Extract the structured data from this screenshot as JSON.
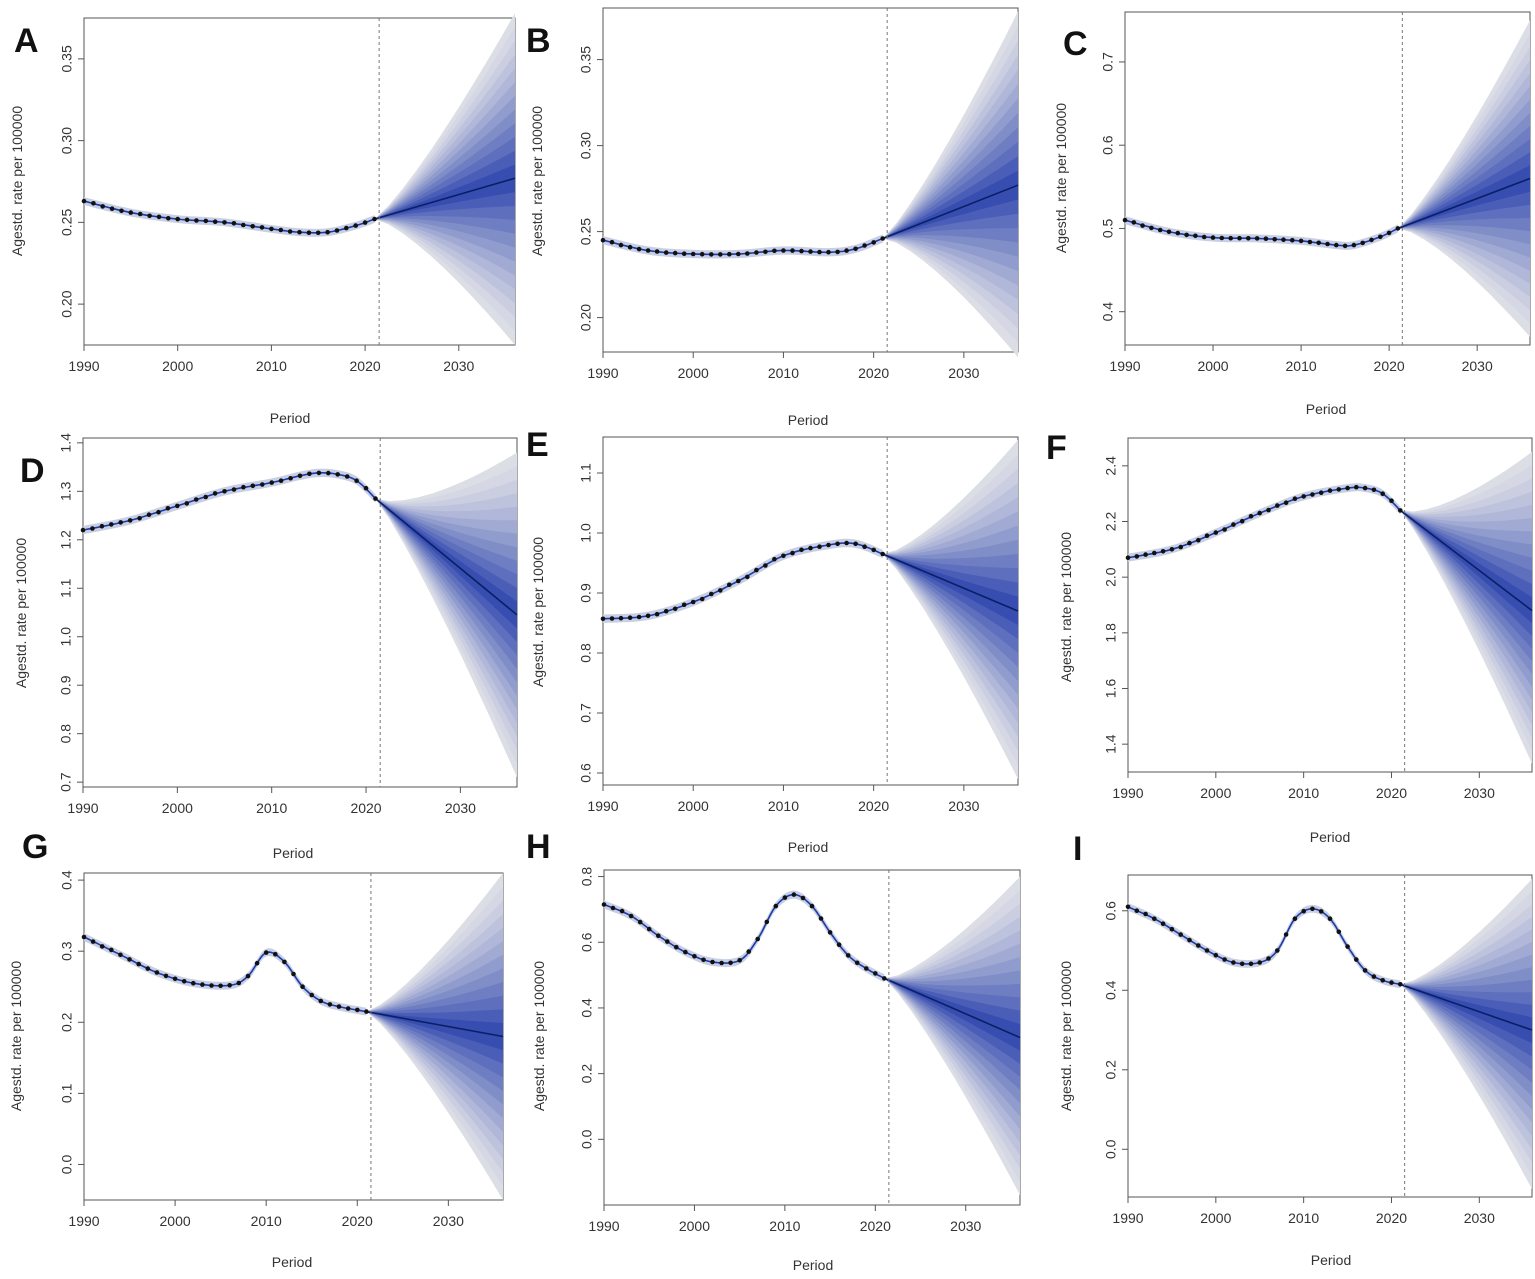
{
  "chart_data": [
    {
      "type": "line",
      "panel": "A",
      "xlabel": "Period",
      "ylabel": "Agestd. rate per 100000",
      "xlim": [
        1990,
        2036
      ],
      "ylim": [
        0.175,
        0.375
      ],
      "yticks": [
        0.2,
        0.25,
        0.3,
        0.35
      ],
      "ytick_labels": [
        "0.20",
        "0.25",
        "0.30",
        "0.35"
      ],
      "xticks": [
        1990,
        2000,
        2010,
        2020,
        2030
      ],
      "xtick_labels": [
        "1990",
        "2000",
        "2010",
        "2020",
        "2030"
      ],
      "forecast_start": 2021.5,
      "observed": {
        "x": [
          1990,
          1995,
          2000,
          2005,
          2010,
          2013,
          2016,
          2019,
          2021
        ],
        "y": [
          0.263,
          0.256,
          0.252,
          0.25,
          0.246,
          0.244,
          0.244,
          0.248,
          0.252
        ]
      },
      "forecast": {
        "x": [
          2021,
          2036
        ],
        "mean": [
          0.252,
          0.277
        ],
        "lower": [
          0.252,
          0.175
        ],
        "upper": [
          0.252,
          0.378
        ]
      }
    },
    {
      "type": "line",
      "panel": "B",
      "xlabel": "Period",
      "ylabel": "Agestd. rate per 100000",
      "xlim": [
        1990,
        2036
      ],
      "ylim": [
        0.18,
        0.38
      ],
      "yticks": [
        0.2,
        0.25,
        0.3,
        0.35
      ],
      "ytick_labels": [
        "0.20",
        "0.25",
        "0.30",
        "0.35"
      ],
      "xticks": [
        1990,
        2000,
        2010,
        2020,
        2030
      ],
      "xtick_labels": [
        "1990",
        "2000",
        "2010",
        "2020",
        "2030"
      ],
      "forecast_start": 2021.5,
      "observed": {
        "x": [
          1990,
          1995,
          2000,
          2005,
          2010,
          2015,
          2018,
          2021
        ],
        "y": [
          0.245,
          0.239,
          0.237,
          0.237,
          0.239,
          0.238,
          0.24,
          0.246
        ]
      },
      "forecast": {
        "x": [
          2021,
          2036
        ],
        "mean": [
          0.246,
          0.277
        ],
        "lower": [
          0.246,
          0.177
        ],
        "upper": [
          0.246,
          0.378
        ]
      }
    },
    {
      "type": "line",
      "panel": "C",
      "xlabel": "Period",
      "ylabel": "Agestd. rate per 100000",
      "xlim": [
        1990,
        2036
      ],
      "ylim": [
        0.36,
        0.76
      ],
      "yticks": [
        0.4,
        0.5,
        0.6,
        0.7
      ],
      "ytick_labels": [
        "0.4",
        "0.5",
        "0.6",
        "0.7"
      ],
      "xticks": [
        1990,
        2000,
        2010,
        2020,
        2030
      ],
      "xtick_labels": [
        "1990",
        "2000",
        "2010",
        "2020",
        "2030"
      ],
      "forecast_start": 2021.5,
      "observed": {
        "x": [
          1990,
          1995,
          2000,
          2005,
          2010,
          2014,
          2016,
          2019,
          2021
        ],
        "y": [
          0.51,
          0.496,
          0.489,
          0.488,
          0.485,
          0.48,
          0.48,
          0.49,
          0.5
        ]
      },
      "forecast": {
        "x": [
          2021,
          2036
        ],
        "mean": [
          0.5,
          0.56
        ],
        "lower": [
          0.5,
          0.37
        ],
        "upper": [
          0.5,
          0.75
        ]
      }
    },
    {
      "type": "line",
      "panel": "D",
      "xlabel": "Period",
      "ylabel": "Agestd. rate per 100000",
      "xlim": [
        1990,
        2036
      ],
      "ylim": [
        0.69,
        1.41
      ],
      "yticks": [
        0.7,
        0.8,
        0.9,
        1.0,
        1.1,
        1.2,
        1.3,
        1.4
      ],
      "ytick_labels": [
        "0.7",
        "0.8",
        "0.9",
        "1.0",
        "1.1",
        "1.2",
        "1.3",
        "1.4"
      ],
      "xticks": [
        1990,
        2000,
        2010,
        2020,
        2030
      ],
      "xtick_labels": [
        "1990",
        "2000",
        "2010",
        "2020",
        "2030"
      ],
      "forecast_start": 2021.5,
      "observed": {
        "x": [
          1990,
          1995,
          2000,
          2005,
          2010,
          2013,
          2015,
          2017,
          2019,
          2021
        ],
        "y": [
          1.22,
          1.24,
          1.27,
          1.3,
          1.318,
          1.332,
          1.338,
          1.335,
          1.322,
          1.285
        ]
      },
      "forecast": {
        "x": [
          2021,
          2036
        ],
        "mean": [
          1.285,
          1.045
        ],
        "lower": [
          1.285,
          0.71
        ],
        "upper": [
          1.285,
          1.38
        ]
      }
    },
    {
      "type": "line",
      "panel": "E",
      "xlabel": "Period",
      "ylabel": "Agestd. rate per 100000",
      "xlim": [
        1990,
        2036
      ],
      "ylim": [
        0.58,
        1.16
      ],
      "yticks": [
        0.6,
        0.7,
        0.8,
        0.9,
        1.0,
        1.1
      ],
      "ytick_labels": [
        "0.6",
        "0.7",
        "0.8",
        "0.9",
        "1.0",
        "1.1"
      ],
      "xticks": [
        1990,
        2000,
        2010,
        2020,
        2030
      ],
      "xtick_labels": [
        "1990",
        "2000",
        "2010",
        "2020",
        "2030"
      ],
      "forecast_start": 2021.5,
      "observed": {
        "x": [
          1990,
          1995,
          2000,
          2005,
          2010,
          2015,
          2018,
          2021
        ],
        "y": [
          0.857,
          0.862,
          0.885,
          0.92,
          0.962,
          0.98,
          0.982,
          0.965
        ]
      },
      "forecast": {
        "x": [
          2021,
          2036
        ],
        "mean": [
          0.965,
          0.87
        ],
        "lower": [
          0.965,
          0.59
        ],
        "upper": [
          0.965,
          1.155
        ]
      }
    },
    {
      "type": "line",
      "panel": "F",
      "xlabel": "Period",
      "ylabel": "Agestd. rate per 100000",
      "xlim": [
        1990,
        2036
      ],
      "ylim": [
        1.3,
        2.5
      ],
      "yticks": [
        1.4,
        1.6,
        1.8,
        2.0,
        2.2,
        2.4
      ],
      "ytick_labels": [
        "1.4",
        "1.6",
        "1.8",
        "2.0",
        "2.2",
        "2.4"
      ],
      "xticks": [
        1990,
        2000,
        2010,
        2020,
        2030
      ],
      "xtick_labels": [
        "1990",
        "2000",
        "2010",
        "2020",
        "2030"
      ],
      "forecast_start": 2021.5,
      "observed": {
        "x": [
          1990,
          1995,
          2000,
          2005,
          2010,
          2015,
          2017,
          2019,
          2021
        ],
        "y": [
          2.07,
          2.1,
          2.16,
          2.23,
          2.29,
          2.32,
          2.32,
          2.3,
          2.24
        ]
      },
      "forecast": {
        "x": [
          2021,
          2036
        ],
        "mean": [
          2.24,
          1.88
        ],
        "lower": [
          2.24,
          1.33
        ],
        "upper": [
          2.24,
          2.45
        ]
      }
    },
    {
      "type": "line",
      "panel": "G",
      "xlabel": "Period",
      "ylabel": "Agestd. rate per 100000",
      "xlim": [
        1990,
        2036
      ],
      "ylim": [
        -0.05,
        0.41
      ],
      "yticks": [
        0.0,
        0.1,
        0.2,
        0.3,
        0.4
      ],
      "ytick_labels": [
        "0.0",
        "0.1",
        "0.2",
        "0.3",
        "0.4"
      ],
      "xticks": [
        1990,
        2000,
        2010,
        2020,
        2030
      ],
      "xtick_labels": [
        "1990",
        "2000",
        "2010",
        "2020",
        "2030"
      ],
      "forecast_start": 2021.5,
      "observed": {
        "x": [
          1990,
          1994,
          1998,
          2002,
          2006,
          2008,
          2010,
          2012,
          2014,
          2016,
          2018,
          2021
        ],
        "y": [
          0.32,
          0.295,
          0.27,
          0.255,
          0.252,
          0.265,
          0.298,
          0.285,
          0.25,
          0.23,
          0.222,
          0.215
        ]
      },
      "forecast": {
        "x": [
          2021,
          2036
        ],
        "mean": [
          0.215,
          0.18
        ],
        "lower": [
          0.215,
          -0.05
        ],
        "upper": [
          0.215,
          0.41
        ]
      }
    },
    {
      "type": "line",
      "panel": "H",
      "xlabel": "Period",
      "ylabel": "Agestd. rate per 100000",
      "xlim": [
        1990,
        2036
      ],
      "ylim": [
        -0.2,
        0.82
      ],
      "yticks": [
        0.0,
        0.2,
        0.4,
        0.6,
        0.8
      ],
      "ytick_labels": [
        "0.0",
        "0.2",
        "0.4",
        "0.6",
        "0.8"
      ],
      "xticks": [
        1990,
        2000,
        2010,
        2020,
        2030
      ],
      "xtick_labels": [
        "1990",
        "2000",
        "2010",
        "2020",
        "2030"
      ],
      "forecast_start": 2021.5,
      "observed": {
        "x": [
          1990,
          1993,
          1996,
          1999,
          2002,
          2005,
          2007,
          2009,
          2011,
          2013,
          2015,
          2017,
          2019,
          2021
        ],
        "y": [
          0.715,
          0.68,
          0.62,
          0.57,
          0.54,
          0.545,
          0.61,
          0.71,
          0.745,
          0.71,
          0.63,
          0.56,
          0.52,
          0.49
        ]
      },
      "forecast": {
        "x": [
          2021,
          2036
        ],
        "mean": [
          0.49,
          0.31
        ],
        "lower": [
          0.49,
          -0.17
        ],
        "upper": [
          0.49,
          0.8
        ]
      }
    },
    {
      "type": "line",
      "panel": "I",
      "xlabel": "Period",
      "ylabel": "Agestd. rate per 100000",
      "xlim": [
        1990,
        2036
      ],
      "ylim": [
        -0.12,
        0.69
      ],
      "yticks": [
        0.0,
        0.2,
        0.4,
        0.6
      ],
      "ytick_labels": [
        "0.0",
        "0.2",
        "0.4",
        "0.6"
      ],
      "xticks": [
        1990,
        2000,
        2010,
        2020,
        2030
      ],
      "xtick_labels": [
        "1990",
        "2000",
        "2010",
        "2020",
        "2030"
      ],
      "forecast_start": 2021.5,
      "observed": {
        "x": [
          1990,
          1993,
          1996,
          1999,
          2002,
          2005,
          2007,
          2009,
          2011,
          2013,
          2015,
          2017,
          2019,
          2021
        ],
        "y": [
          0.61,
          0.58,
          0.54,
          0.5,
          0.47,
          0.47,
          0.5,
          0.58,
          0.605,
          0.58,
          0.51,
          0.45,
          0.425,
          0.415
        ]
      },
      "forecast": {
        "x": [
          2021,
          2036
        ],
        "mean": [
          0.415,
          0.3
        ],
        "lower": [
          0.415,
          -0.1
        ],
        "upper": [
          0.415,
          0.68
        ]
      }
    }
  ]
}
